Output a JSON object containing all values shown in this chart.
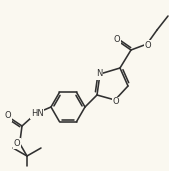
{
  "bg_color": "#faf8f0",
  "line_color": "#303030",
  "line_width": 1.15,
  "figsize": [
    1.69,
    1.71
  ],
  "dpi": 100,
  "xlim": [
    0,
    169
  ],
  "ylim": [
    0,
    171
  ],
  "font_size": 6.0
}
